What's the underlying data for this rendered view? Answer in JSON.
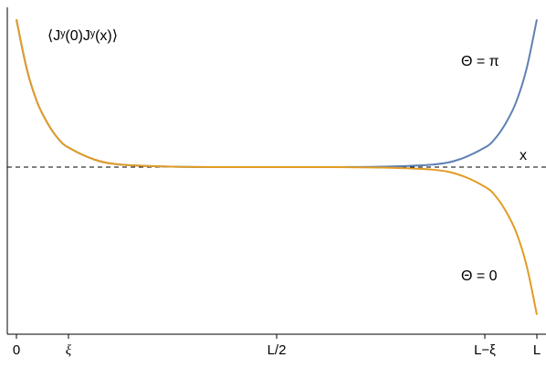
{
  "chart_data": {
    "type": "line",
    "title": "⟨Jʸ(0)Jʸ(x)⟩",
    "xlabel": "x",
    "ylabel": "",
    "x_ticks": [
      "0",
      "ξ",
      "L/2",
      "L−ξ",
      "L"
    ],
    "x_tick_positions": [
      0,
      0.1,
      0.5,
      0.9,
      1.0
    ],
    "xlim": [
      0,
      1
    ],
    "ylim": [
      -1,
      1
    ],
    "baseline": 0,
    "grid": false,
    "series": [
      {
        "name": "Θ = π",
        "color": "#5E81B5",
        "x": [
          0,
          0.02,
          0.04,
          0.06,
          0.08,
          0.1,
          0.15,
          0.2,
          0.3,
          0.4,
          0.5,
          0.6,
          0.7,
          0.8,
          0.85,
          0.9,
          0.92,
          0.94,
          0.96,
          0.98,
          1.0
        ],
        "y": [
          0.98,
          0.65,
          0.43,
          0.29,
          0.19,
          0.13,
          0.05,
          0.017,
          0.003,
          0.0,
          0.0,
          0.0,
          0.003,
          0.017,
          0.05,
          0.13,
          0.19,
          0.29,
          0.43,
          0.65,
          0.98
        ]
      },
      {
        "name": "Θ = 0",
        "color": "#E19C24",
        "x": [
          0,
          0.02,
          0.04,
          0.06,
          0.08,
          0.1,
          0.15,
          0.2,
          0.3,
          0.4,
          0.5,
          0.6,
          0.7,
          0.8,
          0.85,
          0.9,
          0.92,
          0.94,
          0.96,
          0.98,
          1.0
        ],
        "y": [
          0.98,
          0.65,
          0.43,
          0.29,
          0.19,
          0.13,
          0.05,
          0.017,
          0.003,
          0.0,
          0.0,
          0.0,
          -0.003,
          -0.017,
          -0.05,
          -0.13,
          -0.19,
          -0.29,
          -0.43,
          -0.65,
          -0.98
        ]
      }
    ]
  }
}
